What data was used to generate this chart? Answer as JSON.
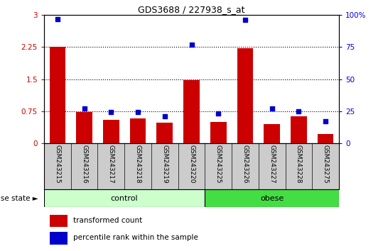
{
  "title": "GDS3688 / 227938_s_at",
  "samples": [
    "GSM243215",
    "GSM243216",
    "GSM243217",
    "GSM243218",
    "GSM243219",
    "GSM243220",
    "GSM243225",
    "GSM243226",
    "GSM243227",
    "GSM243228",
    "GSM243275"
  ],
  "bar_values": [
    2.25,
    0.72,
    0.55,
    0.58,
    0.48,
    1.48,
    0.5,
    2.22,
    0.45,
    0.62,
    0.22
  ],
  "dot_values": [
    97,
    27,
    24,
    24,
    21,
    77,
    23,
    96,
    27,
    25,
    17
  ],
  "bar_color": "#cc0000",
  "dot_color": "#0000cc",
  "ylim_left": [
    0,
    3
  ],
  "ylim_right": [
    0,
    100
  ],
  "yticks_left": [
    0,
    0.75,
    1.5,
    2.25,
    3
  ],
  "ytick_labels_left": [
    "0",
    "0.75",
    "1.5",
    "2.25",
    "3"
  ],
  "yticks_right": [
    0,
    25,
    50,
    75,
    100
  ],
  "ytick_labels_right": [
    "0",
    "25",
    "50",
    "75",
    "100%"
  ],
  "hlines": [
    0.75,
    1.5,
    2.25
  ],
  "n_control": 6,
  "n_obese": 5,
  "control_color": "#ccffcc",
  "obese_color": "#44dd44",
  "group_label_control": "control",
  "group_label_obese": "obese",
  "disease_state_label": "disease state",
  "legend_bar_label": "transformed count",
  "legend_dot_label": "percentile rank within the sample",
  "xticklabel_area_color": "#cccccc",
  "background_color": "#ffffff"
}
